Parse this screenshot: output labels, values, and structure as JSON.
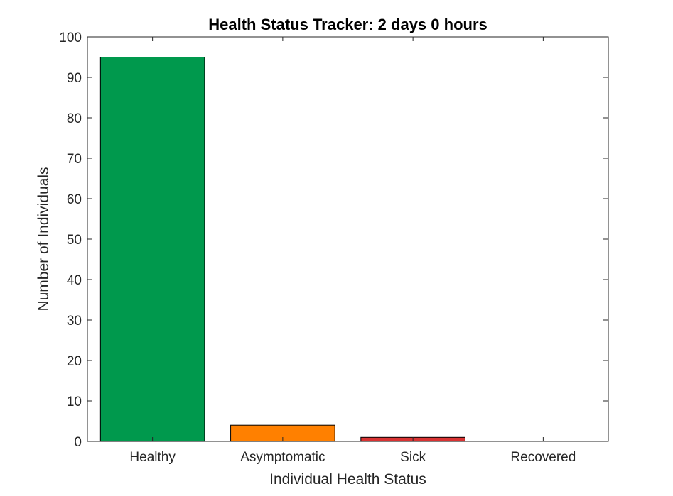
{
  "chart_data": {
    "type": "bar",
    "title": "Health Status Tracker: 2 days 0 hours",
    "xlabel": "Individual Health Status",
    "ylabel": "Number of Individuals",
    "categories": [
      "Healthy",
      "Asymptomatic",
      "Sick",
      "Recovered"
    ],
    "values": [
      95,
      4,
      1,
      0
    ],
    "colors": [
      "#00994d",
      "#ff8000",
      "#d93333",
      "#1f77b4"
    ],
    "ylim": [
      0,
      100
    ],
    "yticks": [
      0,
      10,
      20,
      30,
      40,
      50,
      60,
      70,
      80,
      90,
      100
    ],
    "grid": false,
    "legend": "none"
  }
}
